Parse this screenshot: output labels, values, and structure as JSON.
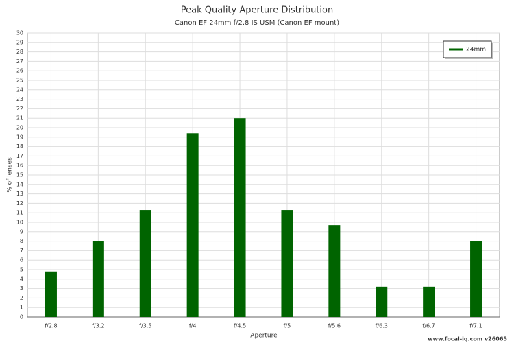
{
  "chart_data": {
    "type": "bar",
    "title": "Peak Quality Aperture Distribution",
    "subtitle": "Canon EF 24mm f/2.8 IS USM (Canon EF mount)",
    "x_label": "Aperture",
    "y_label": "% of lenses",
    "categories": [
      "f/2.8",
      "f/3.2",
      "f/3.5",
      "f/4",
      "f/4.5",
      "f/5",
      "f/5.6",
      "f/6.3",
      "f/6.7",
      "f/7.1"
    ],
    "series": [
      {
        "name": "24mm",
        "color": "#006400",
        "values": [
          4.8,
          8.0,
          11.3,
          19.4,
          21.0,
          11.3,
          9.7,
          3.2,
          3.2,
          8.0
        ]
      }
    ],
    "ylim": [
      0,
      30
    ],
    "yticks": [
      0,
      1,
      2,
      3,
      4,
      5,
      6,
      7,
      8,
      9,
      10,
      11,
      12,
      13,
      14,
      15,
      16,
      17,
      18,
      19,
      20,
      21,
      22,
      23,
      24,
      25,
      26,
      27,
      28,
      29,
      30
    ],
    "grid": true,
    "legend": "top-right",
    "footer": "www.focal-iq.com  v26065"
  }
}
